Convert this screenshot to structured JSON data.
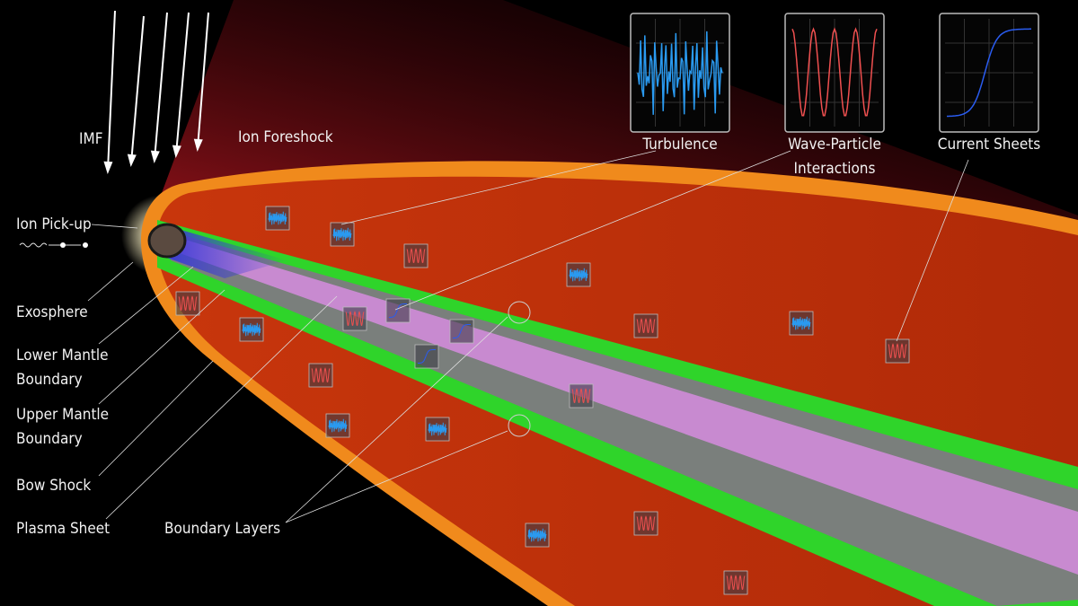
{
  "labels": {
    "imf": [
      "IMF"
    ],
    "ion_foreshock": [
      "Ion Foreshock"
    ],
    "ion_pickup": [
      "Ion Pick-up"
    ],
    "exosphere": [
      "Exosphere"
    ],
    "lower_mantle_boundary": [
      "Lower Mantle",
      "Boundary"
    ],
    "upper_mantle_boundary": [
      "Upper Mantle",
      "Boundary"
    ],
    "bow_shock": [
      "Bow Shock"
    ],
    "plasma_sheet": [
      "Plasma Sheet"
    ],
    "boundary_layers": [
      "Boundary Layers"
    ]
  },
  "insets": [
    {
      "label": [
        "Turbulence"
      ]
    },
    {
      "label": [
        "Wave-Particle",
        "Interactions"
      ]
    },
    {
      "label": [
        "Current Sheets"
      ]
    }
  ]
}
